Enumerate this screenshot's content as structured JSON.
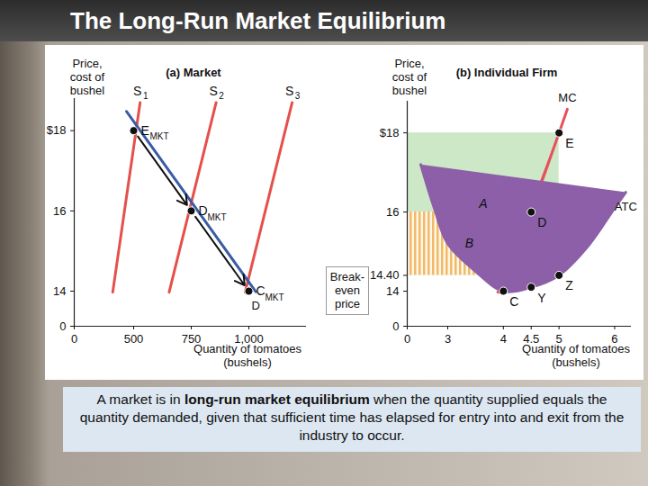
{
  "title": "The Long-Run Market Equilibrium",
  "caption": [
    {
      "text": "A market is in "
    },
    {
      "text": "long-run market equilibrium",
      "bold": true
    },
    {
      "text": " when the quantity supplied equals the quantity demanded, given that sufficient time has elapsed for entry into and exit from the industry to occur."
    }
  ],
  "chart_data": [
    {
      "type": "line",
      "title": "(a) Market",
      "ylabel": "Price,\ncost of\nbushel",
      "xlabel": "Quantity of tomatoes\n(bushels)",
      "xlim": [
        0,
        1250
      ],
      "xticks": [
        0,
        500,
        750,
        {
          "value": 1000,
          "label": "1,000"
        }
      ],
      "ylim": [
        0,
        18.8
      ],
      "yticks": [
        0,
        14,
        16,
        {
          "value": 18,
          "label": "$18"
        }
      ],
      "series": [
        {
          "name": "S1",
          "color": "#e4514b",
          "x": [
            324,
            528
          ],
          "values": [
            13.6,
            18.7
          ]
        },
        {
          "name": "S2",
          "color": "#e4514b",
          "x": [
            654,
            858
          ],
          "values": [
            13.6,
            18.7
          ]
        },
        {
          "name": "S3",
          "color": "#e4514b",
          "x": [
            984,
            1188
          ],
          "values": [
            13.6,
            18.7
          ]
        },
        {
          "name": "D",
          "color": "#3b5ba5",
          "x": [
            440,
            1030
          ],
          "values": [
            18.48,
            13.76
          ]
        }
      ],
      "points": [
        {
          "name": "E",
          "sub": "MKT",
          "x": 500,
          "y": 18
        },
        {
          "name": "D",
          "sub": "MKT",
          "x": 750,
          "y": 16
        },
        {
          "name": "C",
          "sub": "MKT",
          "x": 1000,
          "y": 14
        }
      ],
      "arrows": [
        [
          "E",
          "D"
        ],
        [
          "D",
          "C"
        ]
      ]
    },
    {
      "type": "line",
      "title": "(b) Individual Firm",
      "ylabel": "Price,\ncost of\nbushel",
      "xlabel": "Quantity of tomatoes\n(bushels)",
      "xlim": [
        0,
        6.3
      ],
      "xticks": [
        0,
        3,
        4,
        4.5,
        5,
        6
      ],
      "ylim": [
        0,
        18.8
      ],
      "yticks": [
        0,
        14,
        {
          "value": 14.4,
          "label": "14.40"
        },
        16,
        {
          "value": 18,
          "label": "$18"
        }
      ],
      "series": [
        {
          "name": "MC",
          "color": "#e8505b",
          "x": [
            3.9,
            4,
            4.5,
            5,
            5.15
          ],
          "values": [
            13.6,
            14,
            16,
            18,
            18.6
          ]
        },
        {
          "name": "ATC",
          "color": "#8c5fa8",
          "x": [
            1,
            2,
            3,
            3.5,
            4,
            4.5,
            5,
            5.5,
            6,
            6.2
          ],
          "values": [
            17.2,
            16.1,
            15.2,
            14.5,
            14.0,
            14.1,
            14.4,
            15.1,
            16.1,
            16.5
          ]
        }
      ],
      "areas": [
        {
          "label": "A",
          "color": "#cde8c6",
          "x1": 0,
          "x2": 5,
          "y1": 14.4,
          "y2": 18
        },
        {
          "label": "B",
          "color": "#f2b968",
          "line_style": "vertical",
          "x1": 0,
          "x2": 4.5,
          "y1": 14.4,
          "y2": 16
        }
      ],
      "points": [
        {
          "name": "E",
          "x": 5,
          "y": 18
        },
        {
          "name": "D",
          "x": 4.5,
          "y": 16
        },
        {
          "name": "C",
          "x": 4,
          "y": 14
        },
        {
          "name": "Y",
          "x": 4.5,
          "y": 14.1
        },
        {
          "name": "Z",
          "x": 5,
          "y": 14.4
        }
      ],
      "annotation": {
        "text": "Break-\neven\nprice",
        "y": 14
      }
    }
  ]
}
